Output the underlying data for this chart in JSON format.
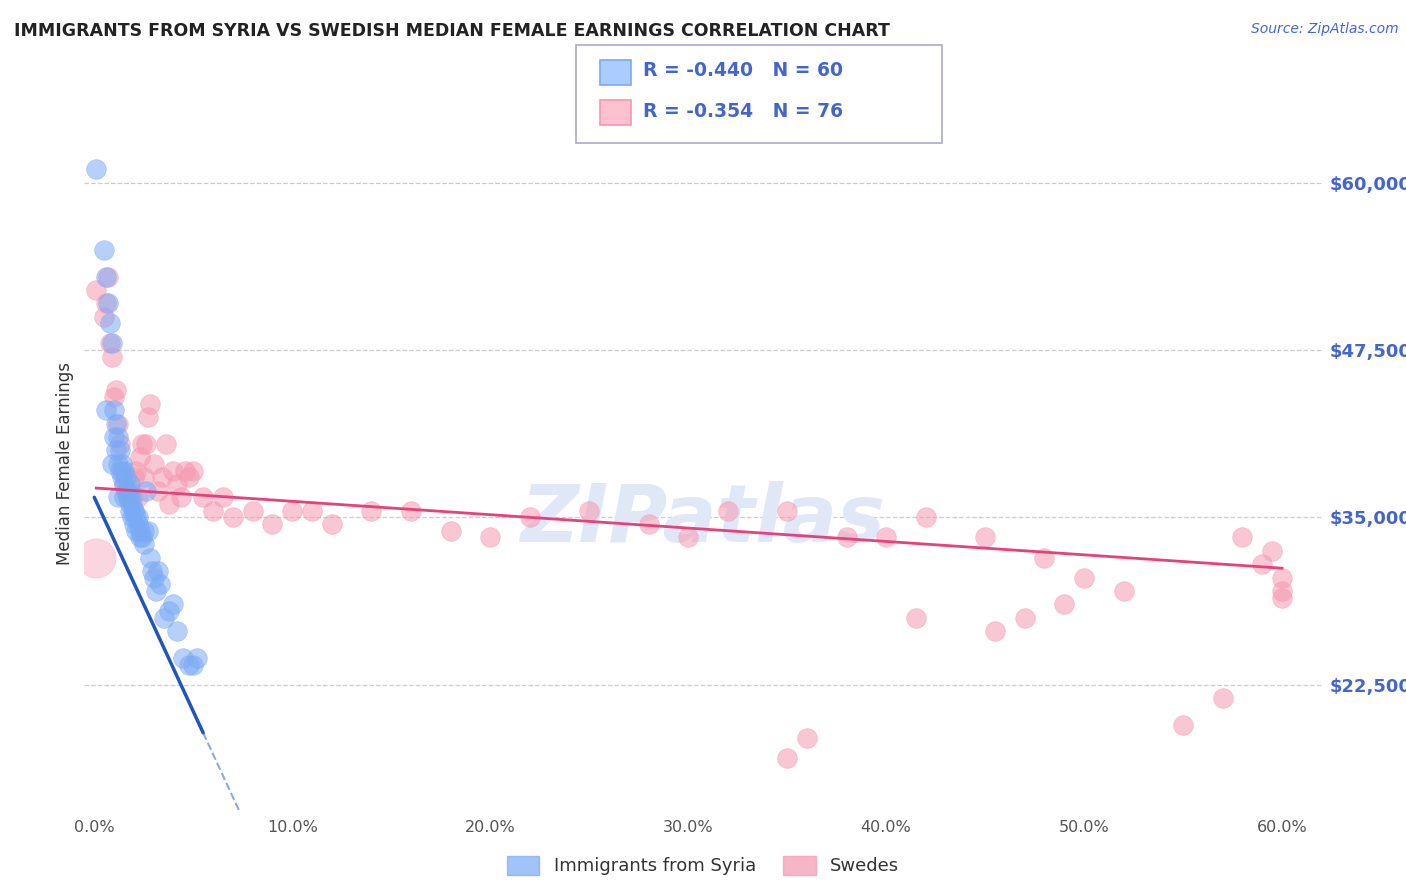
{
  "title": "IMMIGRANTS FROM SYRIA VS SWEDISH MEDIAN FEMALE EARNINGS CORRELATION CHART",
  "source": "Source: ZipAtlas.com",
  "ylabel": "Median Female Earnings",
  "y_min": 13000,
  "y_max": 65000,
  "yticks": [
    22500,
    35000,
    47500,
    60000
  ],
  "ytick_labels": [
    "$22,500",
    "$35,000",
    "$47,500",
    "$60,000"
  ],
  "xticks": [
    0.0,
    0.1,
    0.2,
    0.3,
    0.4,
    0.5,
    0.6
  ],
  "xtick_labels": [
    "0.0%",
    "10.0%",
    "20.0%",
    "30.0%",
    "40.0%",
    "50.0%",
    "60.0%"
  ],
  "legend_x_labels": [
    "Immigrants from Syria",
    "Swedes"
  ],
  "blue_color": "#7aaaf5",
  "pink_color": "#f598b0",
  "blue_r": "-0.440",
  "blue_n": "60",
  "pink_r": "-0.354",
  "pink_n": "76",
  "blue_scatter_x": [
    0.001,
    0.005,
    0.006,
    0.007,
    0.008,
    0.009,
    0.01,
    0.01,
    0.011,
    0.011,
    0.012,
    0.012,
    0.013,
    0.013,
    0.014,
    0.014,
    0.015,
    0.015,
    0.016,
    0.016,
    0.017,
    0.017,
    0.018,
    0.018,
    0.018,
    0.019,
    0.019,
    0.02,
    0.02,
    0.021,
    0.021,
    0.022,
    0.022,
    0.023,
    0.023,
    0.024,
    0.025,
    0.025,
    0.026,
    0.027,
    0.028,
    0.029,
    0.03,
    0.031,
    0.032,
    0.033,
    0.035,
    0.038,
    0.04,
    0.042,
    0.045,
    0.048,
    0.05,
    0.006,
    0.009,
    0.012,
    0.015,
    0.018,
    0.02,
    0.052
  ],
  "blue_scatter_y": [
    61000,
    55000,
    53000,
    51000,
    49500,
    48000,
    41000,
    43000,
    40000,
    42000,
    39000,
    41000,
    38500,
    40000,
    38000,
    39000,
    37500,
    38500,
    37000,
    38000,
    37000,
    36500,
    36500,
    35500,
    37500,
    36000,
    35000,
    35500,
    34500,
    35000,
    34000,
    35000,
    34500,
    34000,
    33500,
    33500,
    33000,
    34000,
    37000,
    34000,
    32000,
    31000,
    30500,
    29500,
    31000,
    30000,
    27500,
    28000,
    28500,
    26500,
    24500,
    24000,
    24000,
    43000,
    39000,
    36500,
    36500,
    36000,
    35500,
    24500
  ],
  "pink_scatter_x": [
    0.001,
    0.005,
    0.006,
    0.007,
    0.008,
    0.009,
    0.01,
    0.011,
    0.012,
    0.013,
    0.014,
    0.015,
    0.016,
    0.017,
    0.018,
    0.019,
    0.02,
    0.021,
    0.022,
    0.023,
    0.024,
    0.025,
    0.026,
    0.027,
    0.028,
    0.03,
    0.032,
    0.034,
    0.036,
    0.038,
    0.04,
    0.042,
    0.044,
    0.046,
    0.048,
    0.05,
    0.055,
    0.06,
    0.065,
    0.07,
    0.08,
    0.09,
    0.1,
    0.11,
    0.12,
    0.14,
    0.16,
    0.18,
    0.2,
    0.22,
    0.25,
    0.28,
    0.3,
    0.32,
    0.35,
    0.38,
    0.4,
    0.42,
    0.45,
    0.48,
    0.5,
    0.52,
    0.55,
    0.57,
    0.58,
    0.59,
    0.595,
    0.6,
    0.6,
    0.6,
    0.47,
    0.49,
    0.455,
    0.415,
    0.35,
    0.36
  ],
  "pink_scatter_y": [
    52000,
    50000,
    51000,
    53000,
    48000,
    47000,
    44000,
    44500,
    42000,
    40500,
    38500,
    37500,
    37000,
    36500,
    37000,
    36500,
    38000,
    38500,
    36500,
    39500,
    40500,
    38000,
    40500,
    42500,
    43500,
    39000,
    37000,
    38000,
    40500,
    36000,
    38500,
    37500,
    36500,
    38500,
    38000,
    38500,
    36500,
    35500,
    36500,
    35000,
    35500,
    34500,
    35500,
    35500,
    34500,
    35500,
    35500,
    34000,
    33500,
    35000,
    35500,
    34500,
    33500,
    35500,
    35500,
    33500,
    33500,
    35000,
    33500,
    32000,
    30500,
    29500,
    19500,
    21500,
    33500,
    31500,
    32500,
    29500,
    29000,
    30500,
    27500,
    28500,
    26500,
    27500,
    17000,
    18500
  ]
}
